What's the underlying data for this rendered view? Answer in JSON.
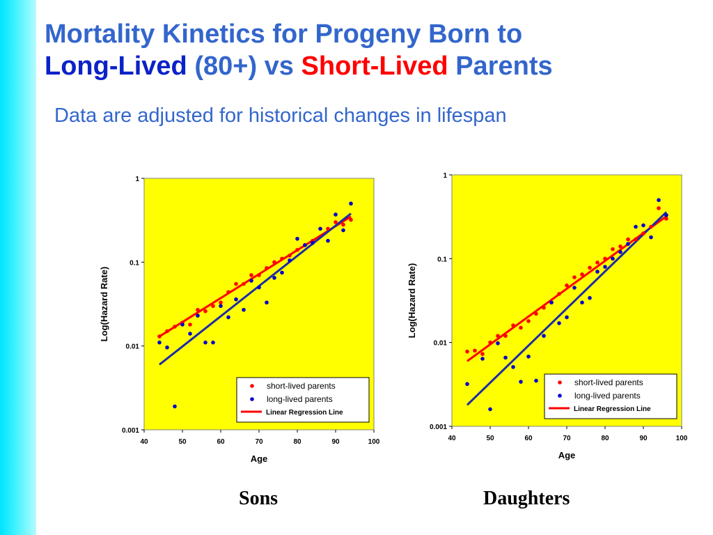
{
  "slide": {
    "title_line1": "Mortality Kinetics for Progeny Born to",
    "title_long_lived": "Long-Lived",
    "title_80plus": "(80+)",
    "title_vs": "vs",
    "title_short_lived": "Short-Lived",
    "title_parents": "Parents",
    "subtitle": "Data are adjusted for historical changes in lifespan",
    "caption_sons": "Sons",
    "caption_daughters": "Daughters"
  },
  "colors": {
    "plot_bg": "#ffff00",
    "short_lived": "#ff0000",
    "long_lived": "#0000cc",
    "regression_short": "#ff0000",
    "regression_long": "#1c2aa8"
  },
  "chart_data": [
    {
      "type": "scatter",
      "caption": "Sons",
      "xlabel": "Age",
      "ylabel": "Log(Hazard Rate)",
      "xlim": [
        40,
        100
      ],
      "ylim": [
        0.001,
        1
      ],
      "yscale": "log",
      "x_ticks": [
        "40",
        "50",
        "60",
        "70",
        "80",
        "90",
        "100"
      ],
      "y_ticks": [
        "1",
        "0.1",
        "0.01",
        "0.001"
      ],
      "legend_position": "bottom-right",
      "legend": [
        "short-lived parents",
        "long-lived parents",
        "Linear Regression Line"
      ],
      "series": [
        {
          "name": "short-lived parents",
          "x": [
            44,
            46,
            48,
            50,
            52,
            54,
            56,
            58,
            60,
            62,
            64,
            66,
            68,
            70,
            72,
            74,
            76,
            78,
            80,
            82,
            84,
            86,
            88,
            90,
            92,
            94
          ],
          "y": [
            0.013,
            0.015,
            0.017,
            0.019,
            0.018,
            0.027,
            0.026,
            0.03,
            0.033,
            0.044,
            0.055,
            0.055,
            0.07,
            0.07,
            0.085,
            0.1,
            0.11,
            0.12,
            0.14,
            0.16,
            0.18,
            0.25,
            0.25,
            0.3,
            0.28,
            0.32
          ]
        },
        {
          "name": "long-lived parents",
          "x": [
            44,
            46,
            48,
            50,
            52,
            54,
            56,
            58,
            60,
            62,
            64,
            66,
            68,
            70,
            72,
            74,
            76,
            78,
            80,
            82,
            84,
            86,
            88,
            90,
            92,
            94
          ],
          "y": [
            0.011,
            0.0096,
            0.0019,
            0.018,
            0.014,
            0.023,
            0.011,
            0.011,
            0.03,
            0.022,
            0.036,
            0.027,
            0.06,
            0.05,
            0.033,
            0.065,
            0.075,
            0.105,
            0.19,
            0.16,
            0.17,
            0.25,
            0.18,
            0.37,
            0.24,
            0.5
          ]
        }
      ],
      "regression": [
        {
          "series": "short-lived parents",
          "x": [
            44,
            94
          ],
          "y": [
            0.013,
            0.35
          ]
        },
        {
          "series": "long-lived parents",
          "x": [
            44,
            94
          ],
          "y": [
            0.006,
            0.38
          ]
        }
      ]
    },
    {
      "type": "scatter",
      "caption": "Daughters",
      "xlabel": "Age",
      "ylabel": "Log(Hazard Rate)",
      "xlim": [
        40,
        100
      ],
      "ylim": [
        0.001,
        1
      ],
      "yscale": "log",
      "x_ticks": [
        "40",
        "50",
        "60",
        "70",
        "80",
        "90",
        "100"
      ],
      "y_ticks": [
        "1",
        "0.1",
        "0.01",
        "0.001"
      ],
      "legend_position": "bottom-right",
      "legend": [
        "short-lived parents",
        "long-lived parents",
        "Linear Regression Line"
      ],
      "series": [
        {
          "name": "short-lived parents",
          "x": [
            44,
            46,
            48,
            50,
            52,
            54,
            56,
            58,
            60,
            62,
            64,
            66,
            68,
            70,
            72,
            74,
            76,
            78,
            80,
            82,
            84,
            86,
            88,
            90,
            92,
            94,
            96
          ],
          "y": [
            0.0078,
            0.008,
            0.0073,
            0.01,
            0.012,
            0.012,
            0.016,
            0.015,
            0.018,
            0.022,
            0.026,
            0.03,
            0.038,
            0.048,
            0.06,
            0.065,
            0.078,
            0.09,
            0.1,
            0.13,
            0.14,
            0.17,
            0.17,
            0.2,
            0.24,
            0.4,
            0.3
          ]
        },
        {
          "name": "long-lived parents",
          "x": [
            44,
            48,
            50,
            52,
            54,
            56,
            58,
            60,
            62,
            64,
            66,
            68,
            70,
            72,
            74,
            76,
            78,
            80,
            82,
            84,
            86,
            88,
            90,
            92,
            94,
            96
          ],
          "y": [
            0.0032,
            0.0064,
            0.0016,
            0.0098,
            0.0066,
            0.0051,
            0.0034,
            0.0068,
            0.0035,
            0.012,
            0.03,
            0.017,
            0.02,
            0.045,
            0.03,
            0.034,
            0.07,
            0.08,
            0.1,
            0.12,
            0.15,
            0.24,
            0.25,
            0.18,
            0.5,
            0.33
          ]
        }
      ],
      "regression": [
        {
          "series": "short-lived parents",
          "x": [
            44,
            96
          ],
          "y": [
            0.006,
            0.32
          ]
        },
        {
          "series": "long-lived parents",
          "x": [
            44,
            96
          ],
          "y": [
            0.0018,
            0.36
          ]
        }
      ]
    }
  ]
}
